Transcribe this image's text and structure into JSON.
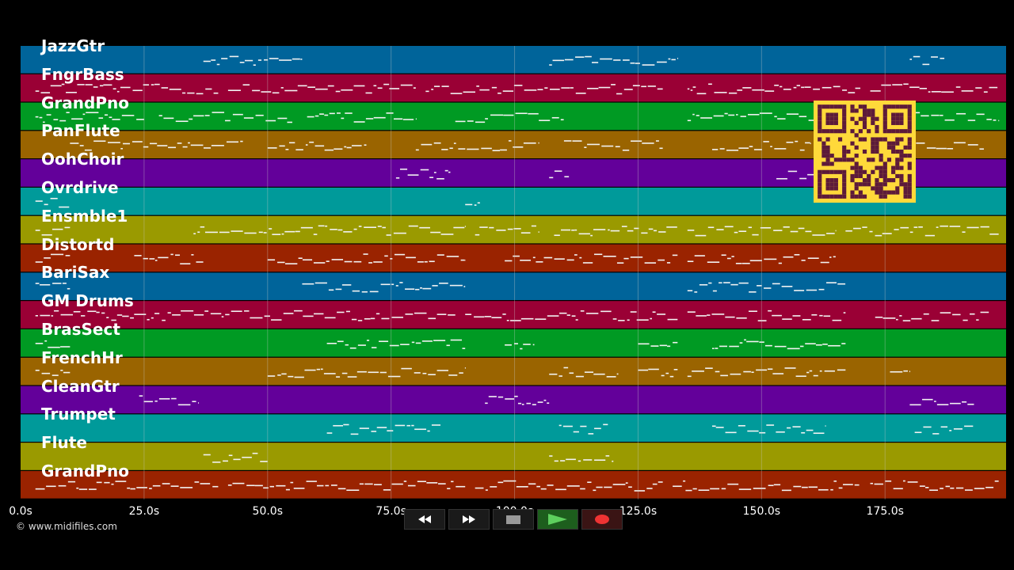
{
  "tracks": [
    {
      "name": "JazzGtr",
      "color": "#00649a",
      "notes": [
        [
          37,
          57
        ],
        [
          107,
          133
        ],
        [
          180,
          187
        ]
      ]
    },
    {
      "name": "FngrBass",
      "color": "#9a0035",
      "notes": [
        [
          3,
          40
        ],
        [
          42,
          80
        ],
        [
          82,
          130
        ],
        [
          135,
          170
        ],
        [
          172,
          198
        ]
      ]
    },
    {
      "name": "GrandPno",
      "color": "#009a23",
      "notes": [
        [
          3,
          25
        ],
        [
          28,
          55
        ],
        [
          58,
          80
        ],
        [
          88,
          110
        ],
        [
          135,
          165
        ],
        [
          178,
          198
        ]
      ]
    },
    {
      "name": "PanFlute",
      "color": "#9a6400",
      "notes": [
        [
          10,
          45
        ],
        [
          50,
          70
        ],
        [
          80,
          105
        ],
        [
          110,
          130
        ],
        [
          140,
          160
        ],
        [
          170,
          195
        ]
      ]
    },
    {
      "name": "OohChoir",
      "color": "#63009a",
      "notes": [
        [
          76,
          87
        ],
        [
          107,
          111
        ],
        [
          153,
          170
        ]
      ]
    },
    {
      "name": "Ovrdrive",
      "color": "#009a9a",
      "notes": [
        [
          3,
          10
        ],
        [
          90,
          93
        ]
      ]
    },
    {
      "name": "Ensmble1",
      "color": "#9a9a00",
      "notes": [
        [
          3,
          10
        ],
        [
          35,
          90
        ],
        [
          92,
          105
        ],
        [
          108,
          133
        ],
        [
          135,
          165
        ],
        [
          167,
          198
        ]
      ]
    },
    {
      "name": "Distortd",
      "color": "#9a2300",
      "notes": [
        [
          3,
          10
        ],
        [
          23,
          37
        ],
        [
          50,
          90
        ],
        [
          98,
          133
        ],
        [
          135,
          165
        ]
      ]
    },
    {
      "name": "BariSax",
      "color": "#00649a",
      "notes": [
        [
          3,
          10
        ],
        [
          57,
          90
        ],
        [
          135,
          167
        ]
      ]
    },
    {
      "name": "GM Drums",
      "color": "#9a0035",
      "notes": [
        [
          3,
          88
        ],
        [
          90,
          133
        ],
        [
          135,
          167
        ],
        [
          173,
          196
        ]
      ]
    },
    {
      "name": "BrasSect",
      "color": "#009a23",
      "notes": [
        [
          3,
          10
        ],
        [
          62,
          90
        ],
        [
          98,
          104
        ],
        [
          125,
          133
        ],
        [
          140,
          167
        ]
      ]
    },
    {
      "name": "FrenchHr",
      "color": "#9a6400",
      "notes": [
        [
          3,
          10
        ],
        [
          50,
          90
        ],
        [
          107,
          121
        ],
        [
          125,
          133
        ],
        [
          135,
          167
        ],
        [
          176,
          180
        ]
      ]
    },
    {
      "name": "CleanGtr",
      "color": "#63009a",
      "notes": [
        [
          24,
          36
        ],
        [
          94,
          107
        ],
        [
          180,
          193
        ]
      ]
    },
    {
      "name": "Trumpet",
      "color": "#009a9a",
      "notes": [
        [
          62,
          85
        ],
        [
          109,
          119
        ],
        [
          140,
          163
        ],
        [
          181,
          193
        ]
      ]
    },
    {
      "name": "Flute",
      "color": "#9a9a00",
      "notes": [
        [
          37,
          50
        ],
        [
          107,
          120
        ]
      ]
    },
    {
      "name": "GrandPno",
      "color": "#9a2300",
      "notes": [
        [
          3,
          40
        ],
        [
          42,
          90
        ],
        [
          92,
          130
        ],
        [
          132,
          170
        ],
        [
          172,
          198
        ]
      ]
    }
  ],
  "axis": {
    "ticks": [
      {
        "value": 0,
        "label": "0.0s"
      },
      {
        "value": 25,
        "label": "25.0s"
      },
      {
        "value": 50,
        "label": "50.0s"
      },
      {
        "value": 75,
        "label": "75.0s"
      },
      {
        "value": 100,
        "label": "100.0s"
      },
      {
        "value": 125,
        "label": "125.0s"
      },
      {
        "value": 150,
        "label": "150.0s"
      },
      {
        "value": 175,
        "label": "175.0s"
      }
    ],
    "max_seconds": 199.5
  },
  "copyright": "© www.midifiles.com",
  "transport": {
    "rewind_icon": "rewind-icon",
    "forward_icon": "fast-forward-icon",
    "stop_icon": "stop-icon",
    "play_icon": "play-icon",
    "record_icon": "record-icon"
  },
  "colors": {
    "qr_fg": "#5c1a3a",
    "qr_bg": "#ffd93a",
    "grid": "#cccccc"
  }
}
